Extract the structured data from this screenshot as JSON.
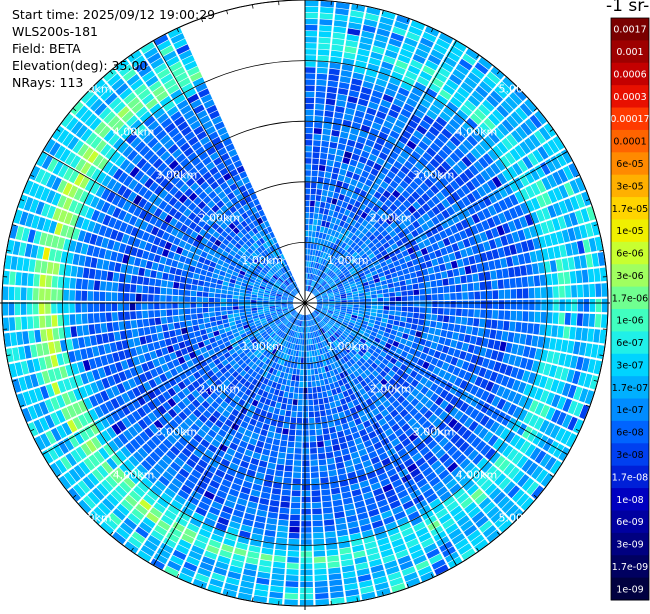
{
  "info": {
    "start_time": "Start time: 2025/09/12 19:00:29",
    "instrument": "WLS200s-181",
    "field": "Field: BETA",
    "elevation": "Elevation(deg): 35.00",
    "nrays": "NRays: 113"
  },
  "colorbar": {
    "title": "-1 sr-",
    "labels": [
      "0.0017",
      "0.001",
      "0.0006",
      "0.0003",
      "0.00017",
      "0.0001",
      "6e-05",
      "3e-05",
      "1.7e-05",
      "1e-05",
      "6e-06",
      "3e-06",
      "1.7e-06",
      "1e-06",
      "6e-07",
      "3e-07",
      "1.7e-07",
      "1e-07",
      "6e-08",
      "3e-08",
      "1.7e-08",
      "1e-08",
      "6e-09",
      "3e-09",
      "1.7e-09",
      "1e-09"
    ],
    "colors": [
      "#7a0000",
      "#9e0000",
      "#c40000",
      "#e81000",
      "#ff3a00",
      "#ff6400",
      "#ff8a00",
      "#ffb000",
      "#ffd400",
      "#f0f000",
      "#c8ff30",
      "#a0ff60",
      "#70ff90",
      "#40ffc0",
      "#20f0e8",
      "#00d4ff",
      "#00b0ff",
      "#008cff",
      "#0064ff",
      "#0040f0",
      "#0020d8",
      "#0000c0",
      "#0000a0",
      "#000080",
      "#000060",
      "#000040"
    ]
  },
  "chart_data": {
    "type": "heatmap",
    "projection": "polar PPI scan",
    "field": "BETA",
    "range_rings_km": [
      1.0,
      2.0,
      3.0,
      4.0,
      5.0
    ],
    "range_labels": [
      "1.00km",
      "2.00km",
      "3.00km",
      "4.00km",
      "5.00km"
    ],
    "max_range_km": 5.0,
    "n_rays": 113,
    "missing_sector_azimuth_deg": [
      336,
      360
    ],
    "dominant_value_range": "1e-08 to 6e-08",
    "outer_band_value_range": "1e-07 to 3e-06",
    "grid": true
  }
}
